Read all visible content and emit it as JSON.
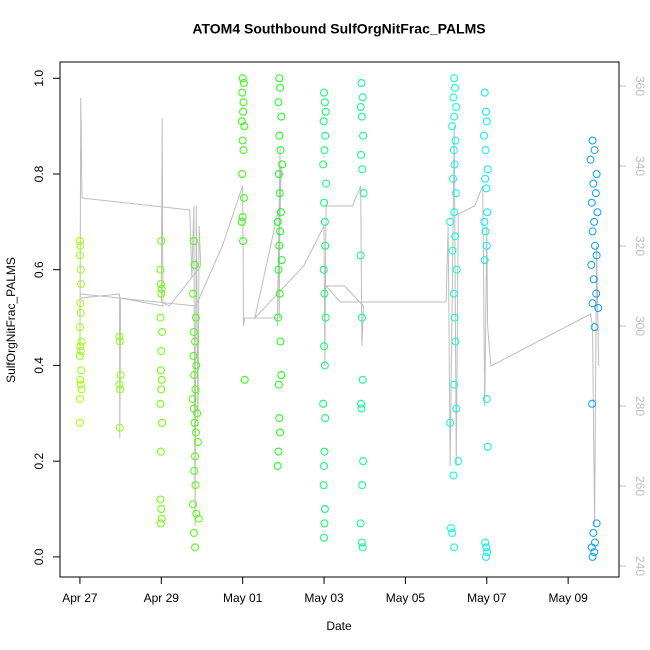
{
  "chart_data": {
    "type": "scatter",
    "title": "ATOM4 Southbound SulfOrgNitFrac_PALMS",
    "x_label": "Date",
    "y_label": "SulfOrgNitFrac_PALMS",
    "xlim": [
      -0.49,
      13.25
    ],
    "ylim": [
      -0.042,
      1.034
    ],
    "y2lim": [
      237.25,
      366
    ],
    "xticks": [
      {
        "value": 0,
        "label": "Apr 27"
      },
      {
        "value": 2,
        "label": "Apr 29"
      },
      {
        "value": 4,
        "label": "May 01"
      },
      {
        "value": 6,
        "label": "May 03"
      },
      {
        "value": 8,
        "label": "May 05"
      },
      {
        "value": 10,
        "label": "May 07"
      },
      {
        "value": 12,
        "label": "May 09"
      }
    ],
    "yticks": [
      {
        "value": 0,
        "label": "0.0"
      },
      0.2,
      0.4,
      0.6,
      0.8,
      {
        "value": 1,
        "label": "1.0"
      }
    ],
    "y2ticks": [
      240,
      260,
      280,
      300,
      320,
      340,
      360
    ],
    "series": [
      {
        "color": "#bebebe",
        "axis": "y2",
        "x": [
          0,
          0.02,
          0.05,
          2.7,
          2.75,
          2.8,
          2.83,
          2.86,
          2.9,
          2.93,
          2.97,
          2.2,
          2.0,
          2.02,
          2.04,
          1.0,
          0.98,
          0.97,
          0.0,
          0.02,
          2.85,
          3.5,
          4.0,
          4.02,
          4.05,
          4.9,
          4.92,
          4.85,
          4.95,
          4.9,
          4.3,
          5.5,
          6.0,
          6.02,
          6.05,
          6.7,
          6.9,
          6.93,
          6.97,
          6.5,
          6.05,
          6.4,
          9.0,
          9.05,
          9.1,
          9.2,
          9.25,
          9.3,
          9.7,
          9.9,
          9.95,
          10.0,
          10.02,
          10.1,
          12.55,
          12.6,
          12.65,
          12.7,
          12.75
        ],
        "values": [
          293,
          357,
          332,
          329,
          312,
          330,
          250,
          330,
          275,
          325,
          315,
          305,
          306,
          352,
          305,
          307,
          272,
          308,
          307,
          308,
          305,
          320,
          335,
          300,
          302,
          302,
          345,
          300,
          340,
          330,
          302,
          315,
          325,
          290,
          330,
          330,
          335,
          295,
          305,
          310,
          310,
          306,
          306,
          325,
          265,
          350,
          265,
          328,
          330,
          335,
          280,
          325,
          300,
          290,
          303,
          300,
          250,
          320,
          290
        ]
      },
      {
        "color": "#9cff00",
        "x": [
          0.0,
          0.01,
          0.0,
          0.03,
          0.01,
          0.02,
          0.0,
          0.04,
          0.01,
          0.02,
          0.0,
          0.03,
          0.01,
          0.02,
          0.04,
          0.0,
          0.0,
          0.02
        ],
        "values": [
          0.66,
          0.65,
          0.63,
          0.57,
          0.53,
          0.51,
          0.48,
          0.45,
          0.44,
          0.43,
          0.42,
          0.39,
          0.37,
          0.36,
          0.35,
          0.33,
          0.28,
          0.6
        ]
      },
      {
        "color": "#8fff00",
        "x": [
          0.97,
          0.98,
          1.0,
          0.97,
          0.99,
          0.98
        ],
        "values": [
          0.46,
          0.45,
          0.38,
          0.36,
          0.35,
          0.27
        ]
      },
      {
        "color": "#6aff00",
        "x": [
          2.0,
          1.98,
          1.99,
          2.01,
          2.0,
          1.98,
          2.02,
          2.0,
          1.99,
          2.01,
          2.0,
          1.98,
          2.02,
          1.99,
          1.98,
          2.0,
          2.01,
          1.99
        ],
        "values": [
          0.66,
          0.6,
          0.57,
          0.56,
          0.55,
          0.5,
          0.47,
          0.43,
          0.39,
          0.37,
          0.35,
          0.32,
          0.28,
          0.22,
          0.12,
          0.1,
          0.08,
          0.07
        ]
      },
      {
        "color": "#4cff00",
        "x": [
          2.8,
          2.82,
          2.78,
          2.85,
          2.8,
          2.83,
          2.79,
          2.86,
          2.81,
          2.84,
          2.77,
          2.8,
          2.88,
          2.82,
          2.85,
          2.9,
          2.83,
          2.81,
          2.84,
          2.78,
          2.86,
          2.92,
          2.8,
          2.83
        ],
        "values": [
          0.66,
          0.61,
          0.55,
          0.5,
          0.47,
          0.45,
          0.42,
          0.4,
          0.38,
          0.35,
          0.33,
          0.31,
          0.3,
          0.28,
          0.26,
          0.24,
          0.21,
          0.18,
          0.15,
          0.11,
          0.09,
          0.08,
          0.05,
          0.02
        ]
      },
      {
        "color": "#2eff00",
        "x": [
          4.0,
          4.03,
          3.99,
          4.02,
          4.01,
          3.98,
          4.04,
          4.0,
          4.02,
          3.99,
          4.03,
          4.0,
          3.98,
          4.01,
          4.05
        ],
        "values": [
          1.0,
          0.99,
          0.97,
          0.95,
          0.93,
          0.91,
          0.9,
          0.87,
          0.85,
          0.8,
          0.75,
          0.71,
          0.7,
          0.66,
          0.37
        ]
      },
      {
        "color": "#10ff10",
        "x": [
          4.9,
          4.92,
          4.88,
          4.95,
          4.9,
          4.93,
          4.97,
          4.89,
          4.91,
          4.94,
          4.86,
          4.92,
          4.9,
          4.96,
          4.88,
          4.91,
          4.87,
          4.93,
          4.95,
          4.89,
          4.9,
          4.92,
          4.88,
          4.86
        ],
        "values": [
          1.0,
          0.98,
          0.95,
          0.92,
          0.88,
          0.85,
          0.82,
          0.8,
          0.76,
          0.72,
          0.7,
          0.68,
          0.65,
          0.62,
          0.6,
          0.55,
          0.5,
          0.45,
          0.38,
          0.36,
          0.29,
          0.26,
          0.22,
          0.19
        ]
      },
      {
        "color": "#00ff6e",
        "x": [
          6.0,
          6.02,
          6.04,
          5.99,
          6.03,
          6.01,
          5.98,
          6.05,
          6.0,
          6.02,
          6.03,
          5.99,
          6.01,
          6.04,
          6.0,
          6.02,
          5.98,
          6.03,
          6.01,
          6.0,
          5.99,
          6.02,
          6.01,
          6.0
        ],
        "values": [
          0.97,
          0.95,
          0.93,
          0.91,
          0.88,
          0.85,
          0.82,
          0.78,
          0.74,
          0.7,
          0.65,
          0.6,
          0.55,
          0.5,
          0.44,
          0.4,
          0.32,
          0.29,
          0.22,
          0.19,
          0.15,
          0.1,
          0.07,
          0.04
        ]
      },
      {
        "color": "#00ff88",
        "x": [
          6.92,
          6.95,
          6.9,
          6.93,
          6.96,
          6.91,
          6.94,
          6.97,
          6.9,
          6.93,
          6.95,
          6.91,
          6.92,
          6.96,
          6.94,
          6.9,
          6.93,
          6.95
        ],
        "values": [
          0.99,
          0.96,
          0.94,
          0.92,
          0.88,
          0.84,
          0.81,
          0.76,
          0.63,
          0.5,
          0.37,
          0.32,
          0.31,
          0.2,
          0.15,
          0.07,
          0.03,
          0.02
        ]
      },
      {
        "color": "#00ffdd",
        "x": [
          9.2,
          9.22,
          9.18,
          9.25,
          9.2,
          9.15,
          9.23,
          9.19,
          9.21,
          9.17,
          9.24,
          9.2,
          9.1,
          9.22,
          9.16,
          9.26,
          9.19,
          9.21,
          9.23,
          9.2,
          9.25,
          9.1,
          9.3,
          9.18,
          9.12,
          9.15,
          9.2
        ],
        "values": [
          1.0,
          0.98,
          0.96,
          0.94,
          0.92,
          0.9,
          0.87,
          0.85,
          0.82,
          0.79,
          0.76,
          0.72,
          0.7,
          0.67,
          0.64,
          0.6,
          0.55,
          0.5,
          0.45,
          0.36,
          0.31,
          0.28,
          0.2,
          0.17,
          0.06,
          0.05,
          0.02
        ]
      },
      {
        "color": "#00f0f0",
        "x": [
          9.95,
          9.98,
          10.0,
          9.93,
          9.97,
          10.02,
          9.96,
          9.99,
          10.01,
          9.94,
          9.97,
          10.0,
          9.95,
          10.0,
          10.02,
          9.96,
          9.99,
          10.01,
          9.98
        ],
        "values": [
          0.97,
          0.93,
          0.91,
          0.88,
          0.85,
          0.81,
          0.79,
          0.77,
          0.72,
          0.7,
          0.68,
          0.65,
          0.62,
          0.33,
          0.23,
          0.03,
          0.02,
          0.01,
          0.0
        ]
      },
      {
        "color": "#0aa0f0",
        "x": [
          12.6,
          12.65,
          12.55,
          12.7,
          12.62,
          12.68,
          12.58,
          12.72,
          12.64,
          12.6,
          12.66,
          12.7,
          12.57,
          12.63,
          12.69,
          12.6,
          12.74,
          12.65,
          12.59,
          12.7,
          12.62,
          12.66,
          12.58,
          12.64,
          12.6
        ],
        "values": [
          0.87,
          0.85,
          0.83,
          0.8,
          0.78,
          0.76,
          0.74,
          0.72,
          0.7,
          0.68,
          0.65,
          0.63,
          0.61,
          0.58,
          0.55,
          0.53,
          0.52,
          0.48,
          0.32,
          0.07,
          0.05,
          0.03,
          0.02,
          0.01,
          0.0
        ]
      }
    ]
  }
}
